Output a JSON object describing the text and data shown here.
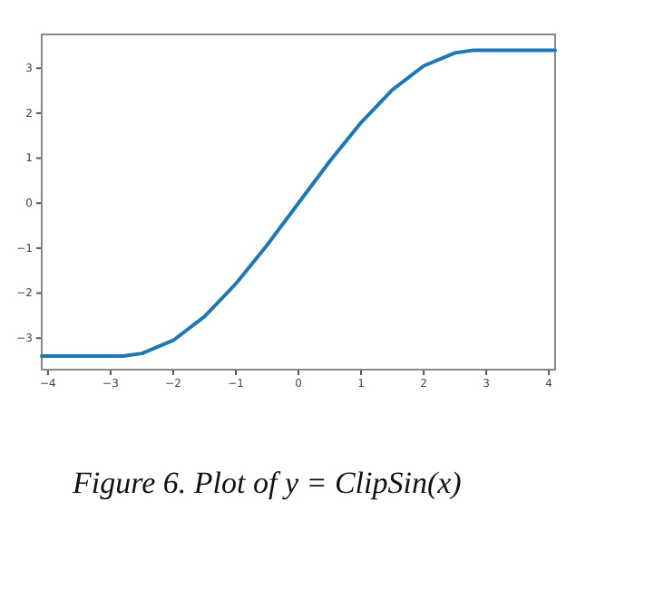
{
  "chart_data": {
    "type": "line",
    "x": [
      -4.1,
      -3.5,
      -3,
      -2.8,
      -2.5,
      -2,
      -1.5,
      -1,
      -0.5,
      0,
      0.5,
      1,
      1.5,
      2,
      2.5,
      2.8,
      3,
      3.5,
      4.1
    ],
    "series": [
      {
        "color": "#1f77b4",
        "values": [
          -3.4,
          -3.4,
          -3.4,
          -3.4,
          -3.34,
          -3.05,
          -2.52,
          -1.79,
          -0.93,
          0,
          0.93,
          1.79,
          2.52,
          3.05,
          3.34,
          3.4,
          3.4,
          3.4,
          3.4
        ]
      }
    ],
    "xlim": [
      -4.1,
      4.1
    ],
    "xticks": [
      -4,
      -3,
      -2,
      -1,
      0,
      1,
      2,
      3,
      4
    ],
    "ylim": [
      -3.7,
      3.75
    ],
    "yticks": [
      -3,
      -2,
      -1,
      0,
      1,
      2,
      3
    ],
    "annotations": [
      "Figure 6. Plot of y = ClipSin(x)"
    ]
  }
}
